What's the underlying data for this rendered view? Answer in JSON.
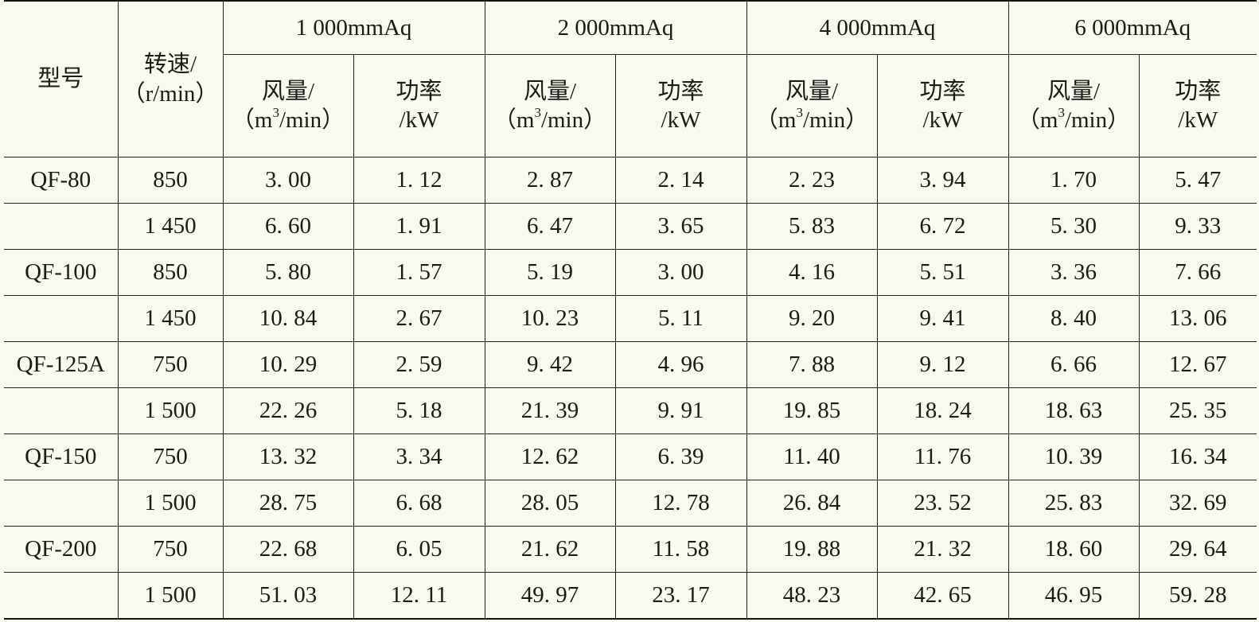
{
  "header": {
    "model": "型号",
    "speed_line1": "转速/",
    "speed_line2": "（r/min）",
    "pressures": [
      "1 000mmAq",
      "2 000mmAq",
      "4 000mmAq",
      "6 000mmAq"
    ],
    "airflow_line1": "风量/",
    "airflow_line2_pre": "（m",
    "airflow_line2_sup": "3",
    "airflow_line2_post": "/min）",
    "power_line1": "功率",
    "power_line2": "/kW"
  },
  "rows": [
    {
      "model": "QF-80",
      "speed": "850",
      "cells": [
        "3. 00",
        "1. 12",
        "2. 87",
        "2. 14",
        "2. 23",
        "3. 94",
        "1. 70",
        "5. 47"
      ]
    },
    {
      "model": "",
      "speed": "1 450",
      "cells": [
        "6. 60",
        "1. 91",
        "6. 47",
        "3. 65",
        "5. 83",
        "6. 72",
        "5. 30",
        "9. 33"
      ]
    },
    {
      "model": "QF-100",
      "speed": "850",
      "cells": [
        "5. 80",
        "1. 57",
        "5. 19",
        "3. 00",
        "4. 16",
        "5. 51",
        "3. 36",
        "7. 66"
      ]
    },
    {
      "model": "",
      "speed": "1 450",
      "cells": [
        "10. 84",
        "2. 67",
        "10. 23",
        "5. 11",
        "9. 20",
        "9. 41",
        "8. 40",
        "13. 06"
      ]
    },
    {
      "model": "QF-125A",
      "speed": "750",
      "cells": [
        "10. 29",
        "2. 59",
        "9. 42",
        "4. 96",
        "7. 88",
        "9. 12",
        "6. 66",
        "12. 67"
      ]
    },
    {
      "model": "",
      "speed": "1 500",
      "cells": [
        "22. 26",
        "5. 18",
        "21. 39",
        "9. 91",
        "19. 85",
        "18. 24",
        "18. 63",
        "25. 35"
      ]
    },
    {
      "model": "QF-150",
      "speed": "750",
      "cells": [
        "13. 32",
        "3. 34",
        "12. 62",
        "6. 39",
        "11. 40",
        "11. 76",
        "10. 39",
        "16. 34"
      ]
    },
    {
      "model": "",
      "speed": "1 500",
      "cells": [
        "28. 75",
        "6. 68",
        "28. 05",
        "12. 78",
        "26. 84",
        "23. 52",
        "25. 83",
        "32. 69"
      ]
    },
    {
      "model": "QF-200",
      "speed": "750",
      "cells": [
        "22. 68",
        "6. 05",
        "21. 62",
        "11. 58",
        "19. 88",
        "21. 32",
        "18. 60",
        "29. 64"
      ]
    },
    {
      "model": "",
      "speed": "1 500",
      "cells": [
        "51. 03",
        "12. 11",
        "49. 97",
        "23. 17",
        "48. 23",
        "42. 65",
        "46. 95",
        "59. 28"
      ]
    }
  ]
}
